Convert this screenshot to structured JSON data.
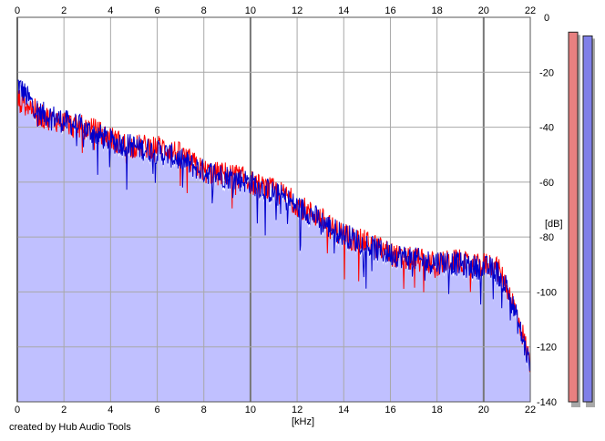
{
  "chart_data": {
    "type": "area",
    "xlabel": "[kHz]",
    "ylabel": "[dB]",
    "xlim": [
      0,
      22
    ],
    "ylim": [
      -140,
      0
    ],
    "x_ticks": [
      0,
      2,
      4,
      6,
      8,
      10,
      12,
      14,
      16,
      18,
      20,
      22
    ],
    "y_ticks": [
      0,
      -20,
      -40,
      -60,
      -80,
      -100,
      -120,
      -140
    ],
    "grid": true,
    "series": [
      {
        "color": "#ff0000",
        "x": [
          0,
          0.5,
          1,
          1.5,
          2,
          2.5,
          3,
          3.5,
          4,
          4.5,
          5,
          5.5,
          6,
          6.5,
          7,
          7.5,
          8,
          8.5,
          9,
          9.5,
          10,
          10.5,
          11,
          11.5,
          12,
          12.5,
          13,
          13.5,
          14,
          14.5,
          15,
          15.5,
          16,
          16.5,
          17,
          17.5,
          18,
          18.5,
          19,
          19.5,
          20,
          20.5,
          21,
          21.5,
          22
        ],
        "values": [
          -30,
          -32,
          -36,
          -37,
          -38,
          -40,
          -40,
          -42,
          -44,
          -46,
          -47,
          -47,
          -47,
          -48,
          -50,
          -53,
          -56,
          -57,
          -57,
          -58,
          -60,
          -62,
          -63,
          -65,
          -68,
          -71,
          -73,
          -77,
          -79,
          -81,
          -82,
          -84,
          -86,
          -88,
          -88,
          -89,
          -90,
          -89,
          -89,
          -91,
          -90,
          -90,
          -98,
          -110,
          -126
        ]
      },
      {
        "color": "#0000cc",
        "x": [
          0,
          0.5,
          1,
          1.5,
          2,
          2.5,
          3,
          3.5,
          4,
          4.5,
          5,
          5.5,
          6,
          6.5,
          7,
          7.5,
          8,
          8.5,
          9,
          9.5,
          10,
          10.5,
          11,
          11.5,
          12,
          12.5,
          13,
          13.5,
          14,
          14.5,
          15,
          15.5,
          16,
          16.5,
          17,
          17.5,
          18,
          18.5,
          19,
          19.5,
          20,
          20.5,
          21,
          21.5,
          22
        ],
        "values": [
          -24,
          -30,
          -35,
          -36,
          -38,
          -39,
          -41,
          -43,
          -45,
          -46,
          -47,
          -48,
          -49,
          -50,
          -52,
          -54,
          -56,
          -57,
          -58,
          -59,
          -60,
          -62,
          -64,
          -66,
          -69,
          -71,
          -74,
          -77,
          -79,
          -81,
          -83,
          -85,
          -86,
          -87,
          -88,
          -89,
          -89,
          -89,
          -90,
          -91,
          -91,
          -92,
          -98,
          -112,
          -127
        ]
      }
    ],
    "fill_color": "#c0c0ff",
    "meters": [
      {
        "color": "#e88080",
        "level": 0.98
      },
      {
        "color": "#8080e8",
        "level": 0.97
      }
    ]
  },
  "footer": "created by Hub Audio Tools"
}
